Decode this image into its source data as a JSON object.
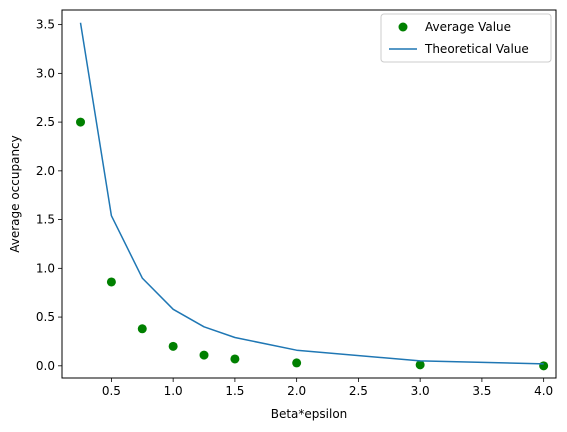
{
  "chart_data": {
    "type": "scatter",
    "xlabel": "Beta*epsilon",
    "ylabel": "Average occupancy",
    "xlim": [
      0.1,
      4.1
    ],
    "ylim": [
      -0.125,
      3.65
    ],
    "xticks": [
      0.5,
      1.0,
      1.5,
      2.0,
      2.5,
      3.0,
      3.5,
      4.0
    ],
    "xtick_labels": [
      "0.5",
      "1.0",
      "1.5",
      "2.0",
      "2.5",
      "3.0",
      "3.5",
      "4.0"
    ],
    "yticks": [
      0.0,
      0.5,
      1.0,
      1.5,
      2.0,
      2.5,
      3.0,
      3.5
    ],
    "ytick_labels": [
      "0.0",
      "0.5",
      "1.0",
      "1.5",
      "2.0",
      "2.5",
      "3.0",
      "3.5"
    ],
    "grid": false,
    "legend_position": "top-right",
    "series": [
      {
        "name": "Average Value",
        "kind": "scatter",
        "color": "#008000",
        "x": [
          0.25,
          0.5,
          0.75,
          1.0,
          1.25,
          1.5,
          2.0,
          3.0,
          4.0
        ],
        "y": [
          2.5,
          0.86,
          0.38,
          0.2,
          0.11,
          0.07,
          0.03,
          0.01,
          0.0
        ]
      },
      {
        "name": "Theoretical Value",
        "kind": "line",
        "color": "#1f77b4",
        "x": [
          0.25,
          0.5,
          0.75,
          1.0,
          1.25,
          1.5,
          2.0,
          3.0,
          4.0
        ],
        "y": [
          3.52,
          1.54,
          0.9,
          0.58,
          0.4,
          0.29,
          0.16,
          0.05,
          0.02
        ]
      }
    ]
  }
}
